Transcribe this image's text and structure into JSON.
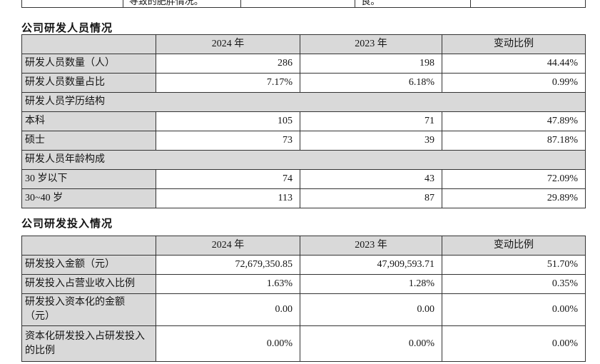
{
  "colors": {
    "table_shading": "#d9d9d9",
    "border": "#333333",
    "text": "#141414",
    "page_background": "#ffffff"
  },
  "clipped_row": {
    "cells": [
      "",
      "导致的肥胖情况。",
      "",
      "良。",
      ""
    ]
  },
  "rd_personnel": {
    "title": "公司研发人员情况",
    "headers": {
      "label": "",
      "y2024": "2024 年",
      "y2023": "2023 年",
      "change": "变动比例"
    },
    "rows": [
      {
        "label": "研发人员数量（人）",
        "v2024": "286",
        "v2023": "198",
        "change": "44.44%"
      },
      {
        "label": "研发人员数量占比",
        "v2024": "7.17%",
        "v2023": "6.18%",
        "change": "0.99%"
      },
      {
        "label": "研发人员学历结构"
      },
      {
        "label": "本科",
        "v2024": "105",
        "v2023": "71",
        "change": "47.89%"
      },
      {
        "label": "硕士",
        "v2024": "73",
        "v2023": "39",
        "change": "87.18%"
      },
      {
        "label": "研发人员年龄构成"
      },
      {
        "label": "30 岁以下",
        "v2024": "74",
        "v2023": "43",
        "change": "72.09%"
      },
      {
        "label": "30~40 岁",
        "v2024": "113",
        "v2023": "87",
        "change": "29.89%"
      }
    ]
  },
  "rd_investment": {
    "title": "公司研发投入情况",
    "headers": {
      "label": "",
      "y2024": "2024 年",
      "y2023": "2023 年",
      "change": "变动比例"
    },
    "rows": [
      {
        "label": "研发投入金额（元）",
        "v2024": "72,679,350.85",
        "v2023": "47,909,593.71",
        "change": "51.70%"
      },
      {
        "label": "研发投入占营业收入比例",
        "v2024": "1.63%",
        "v2023": "1.28%",
        "change": "0.35%"
      },
      {
        "label": "研发投入资本化的金额（元）",
        "v2024": "0.00",
        "v2023": "0.00",
        "change": "0.00%"
      },
      {
        "label": "资本化研发投入占研发投入的比例",
        "v2024": "0.00%",
        "v2023": "0.00%",
        "change": "0.00%"
      }
    ]
  }
}
